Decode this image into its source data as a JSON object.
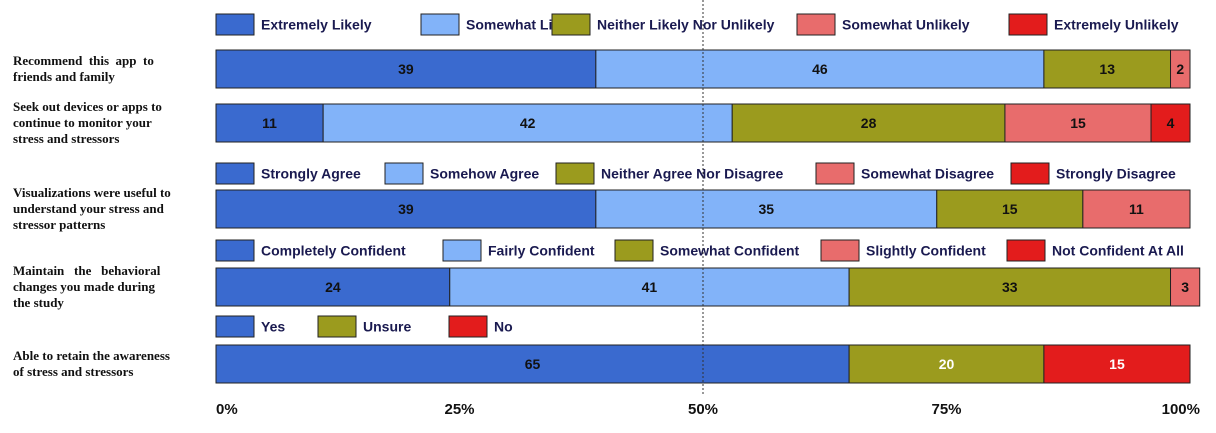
{
  "chart_data": {
    "type": "bar",
    "orientation": "horizontal",
    "stacked": true,
    "xlim": [
      0,
      100
    ],
    "x_ticks": [
      "0%",
      "25%",
      "50%",
      "75%",
      "100%"
    ],
    "reference_line": 50,
    "colors": {
      "c1": "#3a6acf",
      "c2": "#82b3f9",
      "c3": "#9b9b1e",
      "c4": "#e86c6c",
      "c5": "#e31c1c"
    },
    "groups": [
      {
        "legend": [
          {
            "label": "Extremely Likely",
            "color": "#3a6acf"
          },
          {
            "label": "Somewhat Likely",
            "color": "#82b3f9"
          },
          {
            "label": "Neither Likely Nor Unlikely",
            "color": "#9b9b1e"
          },
          {
            "label": "Somewhat Unlikely",
            "color": "#e86c6c"
          },
          {
            "label": "Extremely  Unlikely",
            "color": "#e31c1c"
          }
        ],
        "bars": [
          {
            "question": [
              "Recommend  this  app  to",
              "friends and family"
            ],
            "values": [
              39,
              46,
              13,
              2,
              0
            ]
          },
          {
            "question": [
              "Seek out devices or apps to",
              "continue to monitor your",
              "stress and stressors"
            ],
            "values": [
              11,
              42,
              28,
              15,
              4
            ]
          }
        ]
      },
      {
        "legend": [
          {
            "label": "Strongly Agree",
            "color": "#3a6acf"
          },
          {
            "label": "Somehow Agree",
            "color": "#82b3f9"
          },
          {
            "label": "Neither Agree Nor Disagree",
            "color": "#9b9b1e"
          },
          {
            "label": "Somewhat Disagree",
            "color": "#e86c6c"
          },
          {
            "label": "Strongly  Disagree",
            "color": "#e31c1c"
          }
        ],
        "bars": [
          {
            "question": [
              "Visualizations were useful to",
              "understand your stress and",
              "stressor patterns"
            ],
            "values": [
              39,
              35,
              15,
              11,
              0
            ]
          }
        ]
      },
      {
        "legend": [
          {
            "label": "Completely Confident",
            "color": "#3a6acf"
          },
          {
            "label": "Fairly Confident",
            "color": "#82b3f9"
          },
          {
            "label": "Somewhat Confident",
            "color": "#9b9b1e"
          },
          {
            "label": "Slightly Confident",
            "color": "#e86c6c"
          },
          {
            "label": "Not Confident At All",
            "color": "#e31c1c"
          }
        ],
        "bars": [
          {
            "question": [
              "Maintain   the   behavioral",
              "changes you made during",
              "the study"
            ],
            "values": [
              24,
              41,
              33,
              3,
              0
            ]
          }
        ]
      },
      {
        "legend": [
          {
            "label": "Yes",
            "color": "#3a6acf"
          },
          {
            "label": "Unsure",
            "color": "#9b9b1e"
          },
          {
            "label": "No",
            "color": "#e31c1c"
          }
        ],
        "bars": [
          {
            "question": [
              "Able to retain the awareness",
              "of stress and stressors"
            ],
            "values": [
              65,
              20,
              15
            ],
            "colors": [
              "#3a6acf",
              "#9b9b1e",
              "#e31c1c"
            ]
          }
        ]
      }
    ]
  }
}
